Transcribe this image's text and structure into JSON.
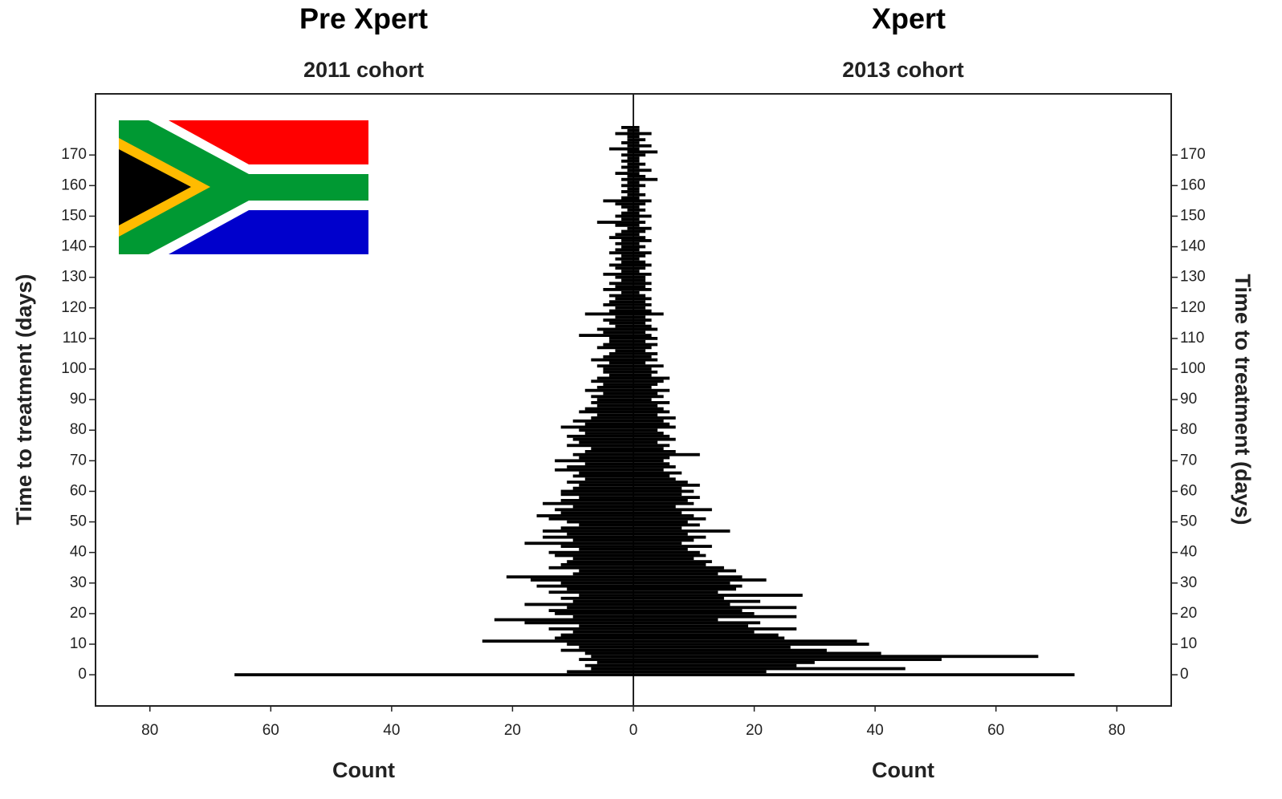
{
  "chart_data": [
    {
      "type": "histogram",
      "side": "left",
      "title": "Pre Xpert",
      "subtitle": "2011 cohort",
      "xlabel": "Count",
      "ylabel": "Time to treatment (days)",
      "color": "#000000",
      "xlim": [
        0,
        89
      ],
      "xticks": [
        0,
        20,
        40,
        60,
        80
      ],
      "ylim": [
        -10.2,
        190
      ],
      "yticks": [
        0,
        10,
        20,
        30,
        40,
        50,
        60,
        70,
        80,
        90,
        100,
        110,
        120,
        130,
        140,
        150,
        160,
        170
      ],
      "bins": [
        -0.5,
        0.5,
        1.5,
        2.5,
        3.5,
        4.5,
        5.5,
        6.5,
        7.5,
        8.5,
        9.5,
        10.5,
        11.5,
        12.5,
        13.5,
        14.5,
        15.5,
        16.5,
        17.5,
        18.5,
        19.5,
        20.5,
        21.5,
        22.5,
        23.5,
        24.5,
        25.5,
        26.5,
        27.5,
        28.5,
        29.5,
        30.5,
        31.5,
        32.5,
        33.5,
        34.5,
        35.5,
        36.5,
        37.5,
        38.5,
        39.5,
        40.5,
        41.5,
        42.5,
        43.5,
        44.5,
        45.5,
        46.5,
        47.5,
        48.5,
        49.5,
        50.5,
        51.5,
        52.5,
        53.5,
        54.5,
        55.5,
        56.5,
        57.5,
        58.5,
        59.5,
        60.5,
        61.5,
        62.5,
        63.5,
        64.5,
        65.5,
        66.5,
        67.5,
        68.5,
        69.5,
        70.5,
        71.5,
        72.5,
        73.5,
        74.5,
        75.5,
        76.5,
        77.5,
        78.5,
        79.5,
        80.5,
        81.5,
        82.5,
        83.5,
        84.5,
        85.5,
        86.5,
        87.5,
        88.5,
        89.5,
        90.5,
        91.5,
        92.5,
        93.5,
        94.5,
        95.5,
        96.5,
        97.5,
        98.5,
        99.5,
        100.5,
        101.5,
        102.5,
        103.5,
        104.5,
        105.5,
        106.5,
        107.5,
        108.5,
        109.5,
        110.5,
        111.5,
        112.5,
        113.5,
        114.5,
        115.5,
        116.5,
        117.5,
        118.5,
        119.5,
        120.5,
        121.5,
        122.5,
        123.5,
        124.5,
        125.5,
        126.5,
        127.5,
        128.5,
        129.5,
        130.5,
        131.5,
        132.5,
        133.5,
        134.5,
        135.5,
        136.5,
        137.5,
        138.5,
        139.5,
        140.5,
        141.5,
        142.5,
        143.5,
        144.5,
        145.5,
        146.5,
        147.5,
        148.5,
        149.5,
        150.5,
        151.5,
        152.5,
        153.5,
        154.5,
        155.5,
        156.5,
        157.5,
        158.5,
        159.5,
        160.5,
        161.5,
        162.5,
        163.5,
        164.5,
        165.5,
        166.5,
        167.5,
        168.5,
        169.5,
        170.5,
        171.5,
        172.5,
        173.5,
        174.5,
        175.5,
        176.5,
        177.5,
        178.5,
        179.5
      ],
      "counts": [
        66,
        11,
        7,
        8,
        6,
        9,
        7,
        8,
        12,
        9,
        11,
        25,
        13,
        12,
        10,
        14,
        9,
        18,
        23,
        10,
        13,
        14,
        11,
        18,
        10,
        12,
        9,
        14,
        11,
        16,
        12,
        17,
        21,
        10,
        9,
        14,
        12,
        11,
        10,
        13,
        14,
        9,
        12,
        18,
        10,
        15,
        11,
        15,
        12,
        9,
        11,
        14,
        16,
        12,
        13,
        10,
        15,
        12,
        9,
        12,
        12,
        10,
        9,
        11,
        8,
        10,
        9,
        13,
        11,
        8,
        13,
        9,
        10,
        8,
        7,
        11,
        9,
        10,
        11,
        8,
        9,
        12,
        8,
        10,
        7,
        6,
        9,
        8,
        6,
        7,
        6,
        7,
        5,
        8,
        6,
        5,
        7,
        6,
        4,
        5,
        5,
        6,
        4,
        7,
        5,
        4,
        3,
        6,
        5,
        4,
        4,
        9,
        5,
        6,
        3,
        4,
        5,
        3,
        8,
        4,
        3,
        5,
        4,
        3,
        4,
        2,
        5,
        3,
        4,
        2,
        3,
        5,
        2,
        3,
        4,
        2,
        3,
        2,
        4,
        3,
        2,
        3,
        2,
        4,
        3,
        2,
        1,
        3,
        6,
        2,
        3,
        2,
        1,
        2,
        3,
        5,
        2,
        1,
        2,
        1,
        2,
        1,
        2,
        1,
        3,
        1,
        2,
        1,
        2,
        1,
        2,
        1,
        4,
        1,
        2,
        1,
        1,
        3,
        1,
        2
      ]
    },
    {
      "type": "histogram",
      "side": "right",
      "title": "Xpert",
      "subtitle": "2013 cohort",
      "xlabel": "Count",
      "ylabel": "Time to treatment (days)",
      "color": "#000000",
      "xlim": [
        0,
        89
      ],
      "xticks": [
        20,
        40,
        60,
        80
      ],
      "ylim": [
        -10.2,
        190
      ],
      "yticks": [
        0,
        10,
        20,
        30,
        40,
        50,
        60,
        70,
        80,
        90,
        100,
        110,
        120,
        130,
        140,
        150,
        160,
        170
      ],
      "bins": [
        -0.5,
        0.5,
        1.5,
        2.5,
        3.5,
        4.5,
        5.5,
        6.5,
        7.5,
        8.5,
        9.5,
        10.5,
        11.5,
        12.5,
        13.5,
        14.5,
        15.5,
        16.5,
        17.5,
        18.5,
        19.5,
        20.5,
        21.5,
        22.5,
        23.5,
        24.5,
        25.5,
        26.5,
        27.5,
        28.5,
        29.5,
        30.5,
        31.5,
        32.5,
        33.5,
        34.5,
        35.5,
        36.5,
        37.5,
        38.5,
        39.5,
        40.5,
        41.5,
        42.5,
        43.5,
        44.5,
        45.5,
        46.5,
        47.5,
        48.5,
        49.5,
        50.5,
        51.5,
        52.5,
        53.5,
        54.5,
        55.5,
        56.5,
        57.5,
        58.5,
        59.5,
        60.5,
        61.5,
        62.5,
        63.5,
        64.5,
        65.5,
        66.5,
        67.5,
        68.5,
        69.5,
        70.5,
        71.5,
        72.5,
        73.5,
        74.5,
        75.5,
        76.5,
        77.5,
        78.5,
        79.5,
        80.5,
        81.5,
        82.5,
        83.5,
        84.5,
        85.5,
        86.5,
        87.5,
        88.5,
        89.5,
        90.5,
        91.5,
        92.5,
        93.5,
        94.5,
        95.5,
        96.5,
        97.5,
        98.5,
        99.5,
        100.5,
        101.5,
        102.5,
        103.5,
        104.5,
        105.5,
        106.5,
        107.5,
        108.5,
        109.5,
        110.5,
        111.5,
        112.5,
        113.5,
        114.5,
        115.5,
        116.5,
        117.5,
        118.5,
        119.5,
        120.5,
        121.5,
        122.5,
        123.5,
        124.5,
        125.5,
        126.5,
        127.5,
        128.5,
        129.5,
        130.5,
        131.5,
        132.5,
        133.5,
        134.5,
        135.5,
        136.5,
        137.5,
        138.5,
        139.5,
        140.5,
        141.5,
        142.5,
        143.5,
        144.5,
        145.5,
        146.5,
        147.5,
        148.5,
        149.5,
        150.5,
        151.5,
        152.5,
        153.5,
        154.5,
        155.5,
        156.5,
        157.5,
        158.5,
        159.5,
        160.5,
        161.5,
        162.5,
        163.5,
        164.5,
        165.5,
        166.5,
        167.5,
        168.5,
        169.5,
        170.5,
        171.5,
        172.5,
        173.5,
        174.5,
        175.5,
        176.5,
        177.5,
        178.5,
        179.5
      ],
      "counts": [
        73,
        22,
        45,
        27,
        30,
        51,
        67,
        41,
        32,
        26,
        39,
        37,
        25,
        24,
        20,
        27,
        19,
        21,
        14,
        27,
        20,
        18,
        27,
        16,
        21,
        15,
        28,
        14,
        17,
        18,
        16,
        22,
        18,
        14,
        17,
        15,
        12,
        13,
        10,
        12,
        11,
        9,
        13,
        8,
        10,
        12,
        9,
        16,
        8,
        11,
        9,
        12,
        10,
        8,
        13,
        7,
        10,
        9,
        11,
        8,
        10,
        8,
        11,
        9,
        7,
        6,
        8,
        5,
        7,
        6,
        5,
        6,
        11,
        7,
        5,
        6,
        4,
        7,
        6,
        5,
        4,
        7,
        6,
        5,
        7,
        4,
        6,
        5,
        4,
        6,
        3,
        5,
        4,
        6,
        3,
        4,
        5,
        6,
        3,
        4,
        3,
        5,
        2,
        4,
        3,
        4,
        2,
        3,
        4,
        2,
        4,
        3,
        2,
        4,
        3,
        2,
        3,
        2,
        5,
        3,
        2,
        3,
        2,
        3,
        2,
        1,
        3,
        2,
        3,
        2,
        2,
        3,
        1,
        2,
        3,
        2,
        1,
        2,
        3,
        1,
        2,
        1,
        3,
        2,
        1,
        2,
        3,
        1,
        2,
        1,
        3,
        1,
        2,
        1,
        2,
        3,
        1,
        2,
        1,
        1,
        2,
        1,
        4,
        2,
        1,
        3,
        1,
        2,
        1,
        1,
        2,
        4,
        1,
        3,
        1,
        2,
        1,
        3,
        1,
        1
      ]
    }
  ]
}
